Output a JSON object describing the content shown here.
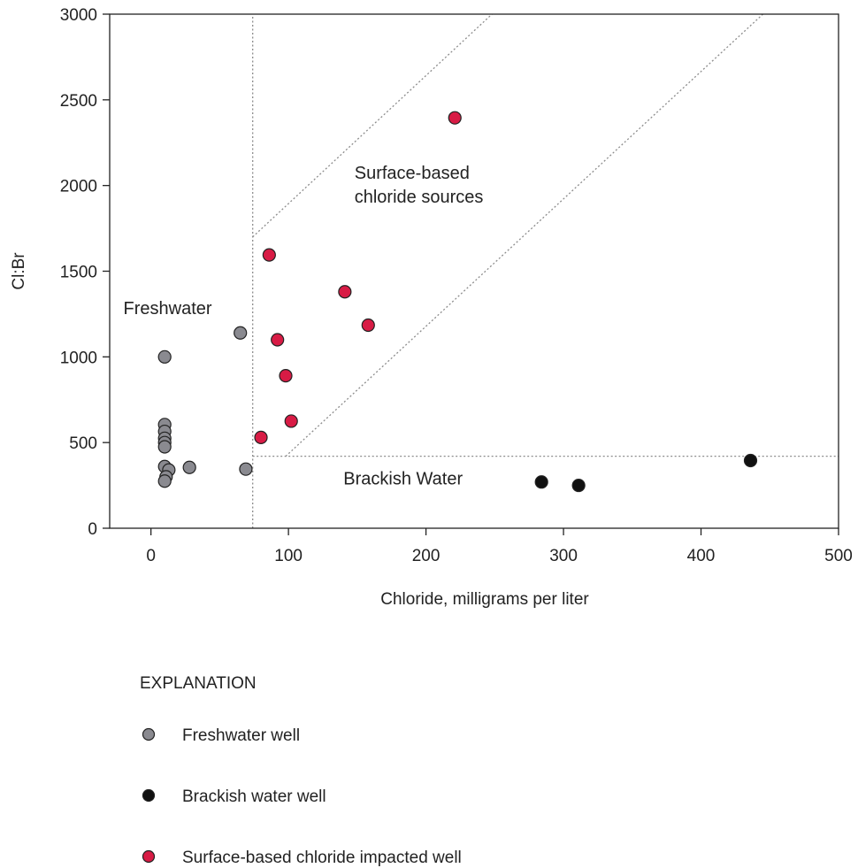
{
  "chart_data": {
    "type": "scatter",
    "xlabel": "Chloride, milligrams per liter",
    "ylabel": "Cl:Br",
    "xlim": [
      -30,
      500
    ],
    "ylim": [
      0,
      3000
    ],
    "x_ticks": [
      0,
      100,
      200,
      300,
      400,
      500
    ],
    "y_ticks": [
      0,
      500,
      1000,
      1500,
      2000,
      2500,
      3000
    ],
    "grid": false,
    "legend_title": "EXPLANATION",
    "legend_placement": "bottom-left",
    "series": [
      {
        "name": "Freshwater well",
        "color": "#8a8a90",
        "points": [
          {
            "x": 10,
            "y": 1000
          },
          {
            "x": 10,
            "y": 605
          },
          {
            "x": 10,
            "y": 565
          },
          {
            "x": 10,
            "y": 525
          },
          {
            "x": 10,
            "y": 500
          },
          {
            "x": 10,
            "y": 475
          },
          {
            "x": 10,
            "y": 360
          },
          {
            "x": 13,
            "y": 340
          },
          {
            "x": 11,
            "y": 300
          },
          {
            "x": 10,
            "y": 275
          },
          {
            "x": 28,
            "y": 355
          },
          {
            "x": 65,
            "y": 1140
          },
          {
            "x": 69,
            "y": 345
          }
        ]
      },
      {
        "name": "Brackish water well",
        "color": "#111111",
        "points": [
          {
            "x": 284,
            "y": 270
          },
          {
            "x": 311,
            "y": 250
          },
          {
            "x": 436,
            "y": 395
          }
        ]
      },
      {
        "name": "Surface-based chloride impacted well",
        "color": "#d81b45",
        "points": [
          {
            "x": 221,
            "y": 2395
          },
          {
            "x": 86,
            "y": 1595
          },
          {
            "x": 141,
            "y": 1380
          },
          {
            "x": 158,
            "y": 1185
          },
          {
            "x": 92,
            "y": 1100
          },
          {
            "x": 98,
            "y": 890
          },
          {
            "x": 102,
            "y": 625
          },
          {
            "x": 80,
            "y": 530
          }
        ]
      }
    ],
    "region_lines": [
      {
        "name": "freshwater-cl-threshold",
        "points": [
          [
            74,
            0
          ],
          [
            74,
            3000
          ]
        ]
      },
      {
        "name": "brackish-clbr-threshold",
        "points": [
          [
            74,
            420
          ],
          [
            500,
            420
          ]
        ]
      },
      {
        "name": "surface-upper-bound",
        "points": [
          [
            74,
            1700
          ],
          [
            248,
            3000
          ]
        ]
      },
      {
        "name": "surface-lower-bound",
        "points": [
          [
            98,
            420
          ],
          [
            445,
            3000
          ]
        ]
      }
    ],
    "annotations": [
      {
        "text": "Surface-based",
        "x": 148,
        "y": 2040
      },
      {
        "text": "chloride sources",
        "x": 148,
        "y": 1900
      },
      {
        "text": "Freshwater",
        "x": -20,
        "y": 1250
      },
      {
        "text": "Brackish Water",
        "x": 140,
        "y": 255
      }
    ]
  }
}
